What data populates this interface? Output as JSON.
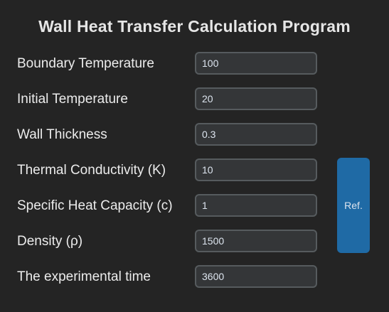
{
  "title": "Wall Heat Transfer Calculation Program",
  "fields": [
    {
      "label": "Boundary Temperature",
      "value": "100"
    },
    {
      "label": "Initial Temperature",
      "value": "20"
    },
    {
      "label": "Wall Thickness",
      "value": "0.3"
    },
    {
      "label": "Thermal Conductivity (K)",
      "value": "10"
    },
    {
      "label": "Specific Heat Capacity (c)",
      "value": "1"
    },
    {
      "label": "Density (ρ)",
      "value": "1500"
    },
    {
      "label": "The experimental time",
      "value": "3600"
    }
  ],
  "ref_button": {
    "label": "Ref."
  },
  "colors": {
    "background": "#242424",
    "input_bg": "#343638",
    "input_border": "#565b5e",
    "button": "#1f6aa5"
  }
}
